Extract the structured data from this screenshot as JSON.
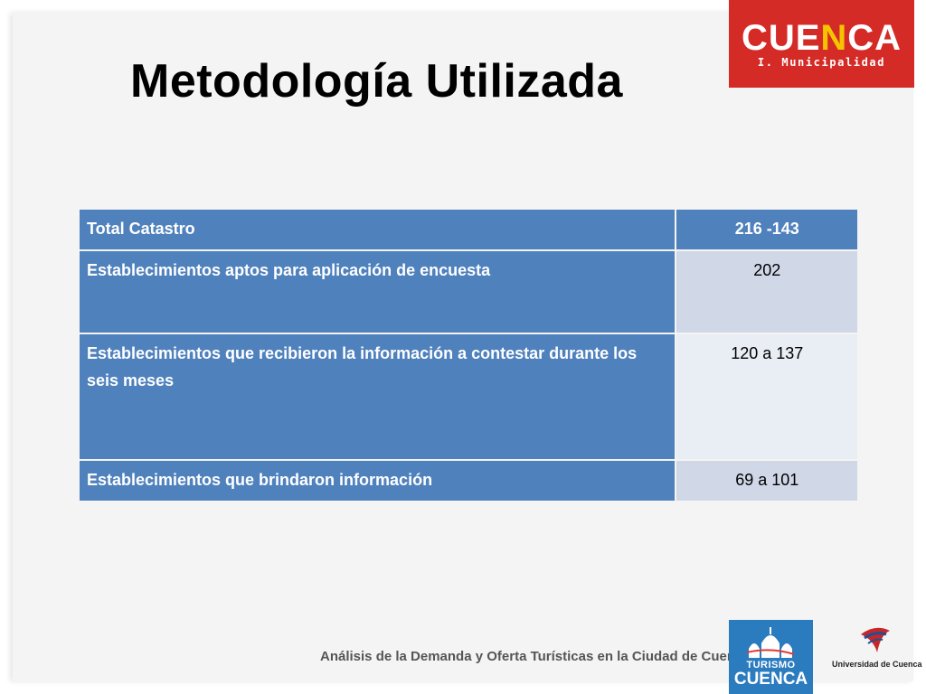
{
  "title": "Metodología Utilizada",
  "logo_top": {
    "brand_part1": "CUE",
    "brand_accent": "N",
    "brand_part2": "CA",
    "subtitle": "I. Municipalidad"
  },
  "table": {
    "rows": [
      {
        "label": "Total Catastro",
        "value": "216 -143"
      },
      {
        "label": "Establecimientos aptos para aplicación de encuesta",
        "value": "202"
      },
      {
        "label": "Establecimientos que recibieron la información a contestar durante los seis meses",
        "value": "120 a 137"
      },
      {
        "label": "Establecimientos que brindaron información",
        "value": "69 a 101"
      }
    ]
  },
  "footer": {
    "text": "Análisis de la Demanda y Oferta Turísticas en la Ciudad de Cuenca",
    "logo_turismo": {
      "line1": "TURISMO",
      "line2": "CUENCA"
    },
    "logo_university": "Universidad de Cuenca"
  },
  "colors": {
    "header": "#4f81bd",
    "cell_dark": "#d0d8e8",
    "cell_light": "#e9edf4",
    "logo_red": "#d52b27",
    "logo_blue": "#2b7bbf"
  }
}
